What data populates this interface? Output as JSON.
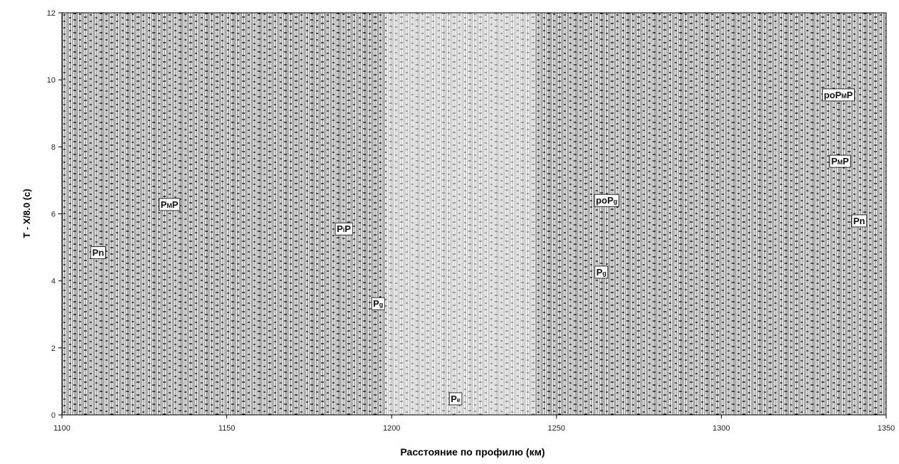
{
  "chart_data": {
    "type": "record-section",
    "xlabel": "Расстояние по профилю (км)",
    "ylabel": "T - X/8.0 (с)",
    "xlim": [
      1100,
      1350
    ],
    "xticks": [
      1100,
      1150,
      1200,
      1250,
      1300,
      1350
    ],
    "ylim": [
      0,
      12
    ],
    "yticks": [
      0,
      2,
      4,
      6,
      8,
      10,
      12
    ],
    "annotations": [
      {
        "base": "P",
        "tail": "n",
        "x": 1111,
        "y": 4.85,
        "color": "#111111"
      },
      {
        "base": "P",
        "sub": "M",
        "tail": "P",
        "x": 1132.6,
        "y": 6.29,
        "color": "#111111"
      },
      {
        "base": "P",
        "sub": "i",
        "tail": "P",
        "x": 1185.5,
        "y": 5.56,
        "color": "#111111"
      },
      {
        "base": "P",
        "sub": "g",
        "x": 1195.9,
        "y": 3.33,
        "color": "#111111"
      },
      {
        "base": "P",
        "sub": "e",
        "x": 1219.4,
        "y": 0.49,
        "color": "#2a9d8f"
      },
      {
        "prefix": "po",
        "base": "P",
        "sub": "g",
        "x": 1265.2,
        "y": 6.41,
        "color": "#2a9d8f"
      },
      {
        "base": "P",
        "sub": "g",
        "x": 1263.6,
        "y": 4.27,
        "color": "#111111"
      },
      {
        "prefix": "po",
        "base": "P",
        "sub": "M",
        "tail": "P",
        "x": 1335.5,
        "y": 9.56,
        "color": "#2a9d8f"
      },
      {
        "base": "P",
        "sub": "M",
        "tail": "P",
        "x": 1336,
        "y": 7.58,
        "color": "#111111"
      },
      {
        "base": "P",
        "tail": "n",
        "x": 1341.8,
        "y": 5.8,
        "color": "#111111"
      }
    ]
  }
}
